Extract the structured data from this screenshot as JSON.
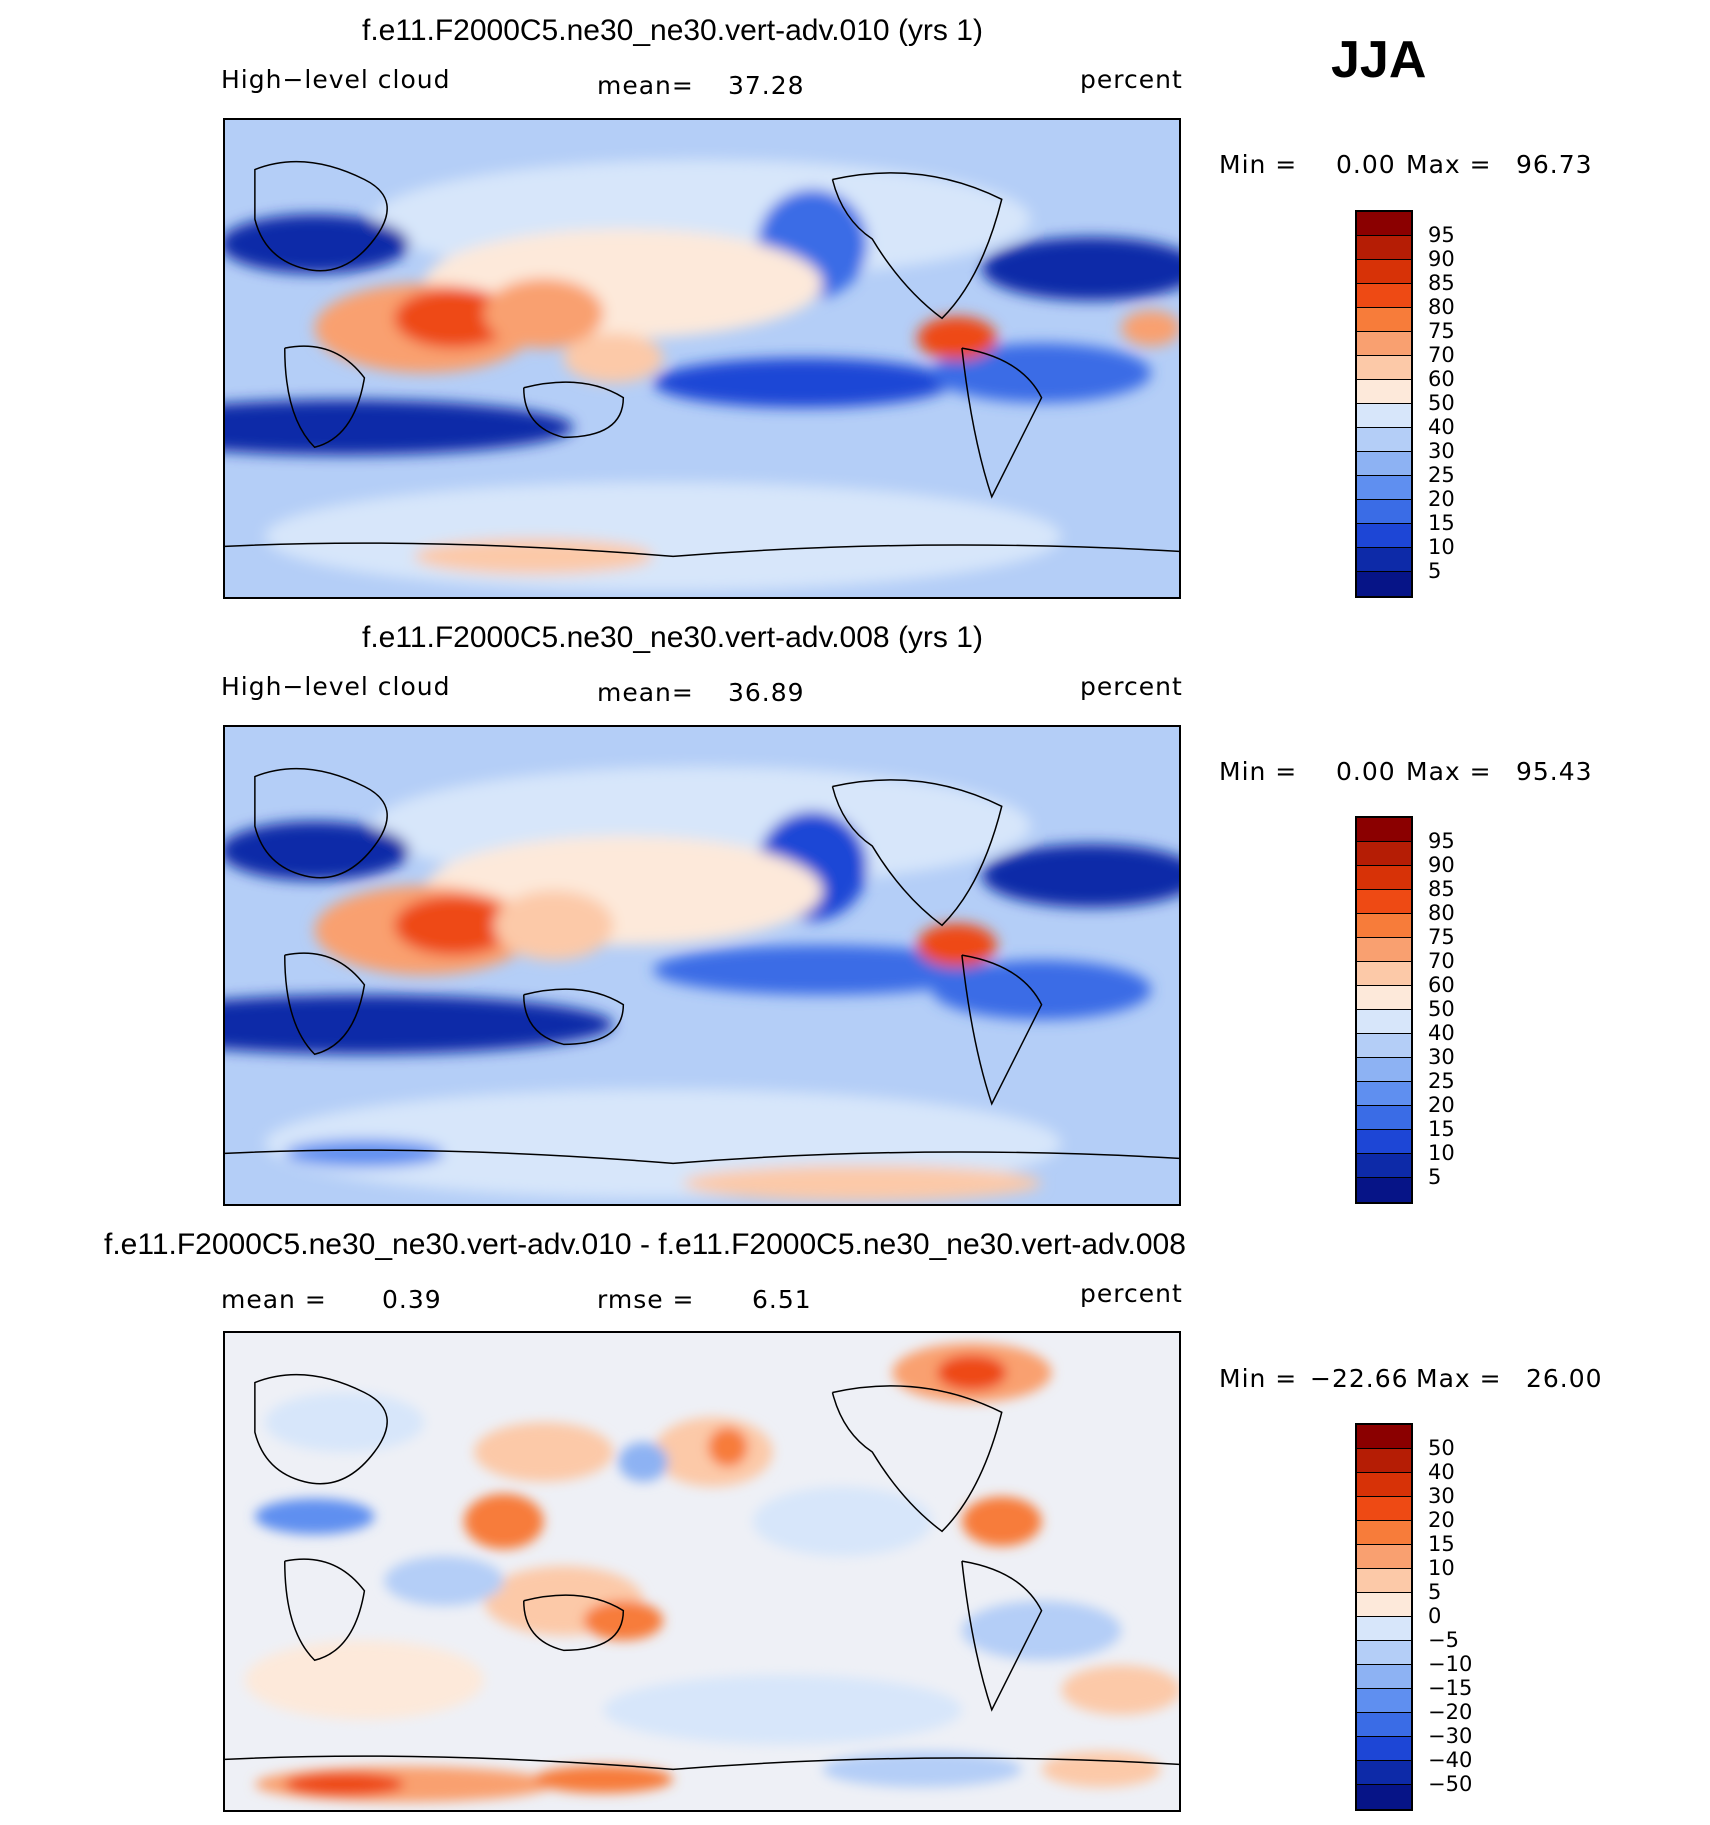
{
  "season": "JJA",
  "panels": [
    {
      "title": "f.e11.F2000C5.ne30_ne30.vert-adv.010 (yrs 1)",
      "left_label": "High−level cloud",
      "center_label": "mean=",
      "center_value": "37.28",
      "right_label": "percent",
      "min_label": "Min =",
      "min_value": "0.00",
      "max_label": "Max =",
      "max_value": "96.73"
    },
    {
      "title": "f.e11.F2000C5.ne30_ne30.vert-adv.008 (yrs 1)",
      "left_label": "High−level cloud",
      "center_label": "mean=",
      "center_value": "36.89",
      "right_label": "percent",
      "min_label": "Min =",
      "min_value": "0.00",
      "max_label": "Max =",
      "max_value": "95.43"
    },
    {
      "title": "f.e11.F2000C5.ne30_ne30.vert-adv.010 - f.e11.F2000C5.ne30_ne30.vert-adv.008",
      "left_label": "mean =",
      "left_value": "0.39",
      "center_label": "rmse =",
      "center_value": "6.51",
      "right_label": "percent",
      "min_label": "Min =",
      "min_value": "−22.66",
      "max_label": "Max =",
      "max_value": "26.00"
    }
  ],
  "colorbars": {
    "cloud": {
      "labels": [
        "95",
        "90",
        "85",
        "80",
        "75",
        "70",
        "60",
        "50",
        "40",
        "30",
        "25",
        "20",
        "15",
        "10",
        "5"
      ],
      "colors": [
        "#8b0000",
        "#b51d05",
        "#d73207",
        "#ee4a14",
        "#f77c3a",
        "#f9a070",
        "#fcc9a8",
        "#fde9da",
        "#d7e6fa",
        "#b4cef7",
        "#8db2f3",
        "#5f8ff0",
        "#3a6ce6",
        "#1d46d6",
        "#0d2aa8",
        "#061487"
      ]
    },
    "diff": {
      "labels": [
        "50",
        "40",
        "30",
        "20",
        "15",
        "10",
        "5",
        "0",
        "−5",
        "−10",
        "−15",
        "−20",
        "−30",
        "−40",
        "−50"
      ],
      "colors": [
        "#8b0000",
        "#b51d05",
        "#d73207",
        "#ee4a14",
        "#f77c3a",
        "#f9a070",
        "#fcc9a8",
        "#fde9da",
        "#d7e6fa",
        "#b4cef7",
        "#8db2f3",
        "#5f8ff0",
        "#3a6ce6",
        "#1d46d6",
        "#0d2aa8",
        "#061487"
      ]
    }
  },
  "chart_data": [
    {
      "type": "heatmap",
      "title": "f.e11.F2000C5.ne30_ne30.vert-adv.010 (yrs 1)",
      "variable": "High−level cloud",
      "units": "percent",
      "mean": 37.28,
      "min": 0.0,
      "max": 96.73,
      "levels": [
        5,
        10,
        15,
        20,
        25,
        30,
        40,
        50,
        60,
        70,
        75,
        80,
        85,
        90,
        95
      ]
    },
    {
      "type": "heatmap",
      "title": "f.e11.F2000C5.ne30_ne30.vert-adv.008 (yrs 1)",
      "variable": "High−level cloud",
      "units": "percent",
      "mean": 36.89,
      "min": 0.0,
      "max": 95.43,
      "levels": [
        5,
        10,
        15,
        20,
        25,
        30,
        40,
        50,
        60,
        70,
        75,
        80,
        85,
        90,
        95
      ]
    },
    {
      "type": "heatmap",
      "title": "f.e11.F2000C5.ne30_ne30.vert-adv.010 - f.e11.F2000C5.ne30_ne30.vert-adv.008",
      "units": "percent",
      "mean": 0.39,
      "rmse": 6.51,
      "min": -22.66,
      "max": 26.0,
      "levels": [
        -50,
        -40,
        -30,
        -20,
        -15,
        -10,
        -5,
        0,
        5,
        10,
        15,
        20,
        30,
        40,
        50
      ]
    }
  ]
}
